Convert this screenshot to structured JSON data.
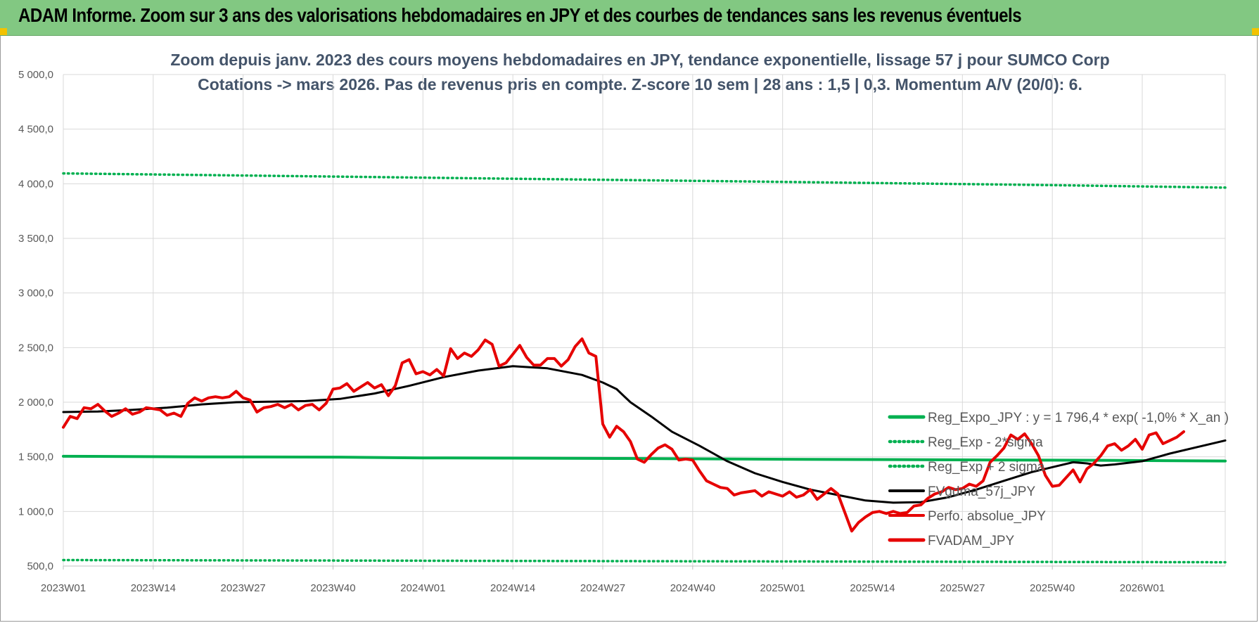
{
  "banner": {
    "title": "ADAM Informe. Zoom sur 3 ans des valorisations hebdomadaires en JPY et des courbes de tendances sans les revenus éventuels"
  },
  "colors": {
    "banner_bg": "#82c882",
    "reg_expo": "#00b050",
    "fvgdma": "#000000",
    "fvadam": "#e60000",
    "title_text": "#44546a"
  },
  "chart_data": {
    "type": "line",
    "title": "Zoom depuis janv. 2023 des cours moyens hebdomadaires en JPY, tendance exponentielle, lissage 57 j pour SUMCO Corp",
    "subtitle": "Cotations -> mars 2026. Pas de revenus pris en compte. Z-score 10 sem | 28 ans : 1,5 | 0,3. Momentum A/V (20/0): 6.",
    "ylim": [
      500,
      5000
    ],
    "yticks": [
      "5 000,0",
      "4 500,0",
      "4 000,0",
      "3 500,0",
      "3 000,0",
      "2 500,0",
      "2 000,0",
      "1 500,0",
      "1 000,0",
      "500,0"
    ],
    "ytick_values": [
      5000,
      4500,
      4000,
      3500,
      3000,
      2500,
      2000,
      1500,
      1000,
      500
    ],
    "xticks": [
      "2023W01",
      "2023W14",
      "2023W27",
      "2023W40",
      "2024W01",
      "2024W14",
      "2024W27",
      "2024W40",
      "2025W01",
      "2025W14",
      "2025W27",
      "2025W40",
      "2026W01"
    ],
    "xtick_positions": [
      0,
      13,
      26,
      39,
      52,
      65,
      78,
      91,
      104,
      117,
      130,
      143,
      156
    ],
    "x_max_week": 168,
    "grid": true,
    "legend_position": "bottom-right",
    "series": [
      {
        "name": "Reg_Expo_JPY : y = 1 796,4 * exp( -1,0% *  X_an )",
        "style": "solid-thick",
        "color": "#00b050",
        "points": [
          [
            0,
            1505
          ],
          [
            20,
            1500
          ],
          [
            40,
            1497
          ],
          [
            52,
            1490
          ],
          [
            80,
            1485
          ],
          [
            104,
            1478
          ],
          [
            130,
            1472
          ],
          [
            150,
            1468
          ],
          [
            168,
            1462
          ]
        ]
      },
      {
        "name": "Reg_Exp - 2*sigma",
        "style": "dotted",
        "color": "#00b050",
        "points": [
          [
            0,
            555
          ],
          [
            40,
            550
          ],
          [
            80,
            545
          ],
          [
            120,
            540
          ],
          [
            168,
            535
          ]
        ]
      },
      {
        "name": "Reg_Exp + 2 sigma",
        "style": "dotted",
        "color": "#00b050",
        "points": [
          [
            0,
            4095
          ],
          [
            20,
            4080
          ],
          [
            40,
            4065
          ],
          [
            60,
            4050
          ],
          [
            80,
            4035
          ],
          [
            100,
            4020
          ],
          [
            120,
            4005
          ],
          [
            140,
            3990
          ],
          [
            168,
            3965
          ]
        ]
      },
      {
        "name": "FVgdma_57j_JPY",
        "style": "solid",
        "color": "#000000",
        "points": [
          [
            0,
            1910
          ],
          [
            5,
            1915
          ],
          [
            10,
            1930
          ],
          [
            15,
            1950
          ],
          [
            20,
            1980
          ],
          [
            25,
            2000
          ],
          [
            30,
            2005
          ],
          [
            35,
            2010
          ],
          [
            40,
            2030
          ],
          [
            45,
            2080
          ],
          [
            50,
            2150
          ],
          [
            55,
            2230
          ],
          [
            60,
            2290
          ],
          [
            65,
            2330
          ],
          [
            70,
            2310
          ],
          [
            75,
            2250
          ],
          [
            78,
            2180
          ],
          [
            80,
            2120
          ],
          [
            82,
            2000
          ],
          [
            85,
            1870
          ],
          [
            88,
            1730
          ],
          [
            92,
            1600
          ],
          [
            96,
            1460
          ],
          [
            100,
            1350
          ],
          [
            104,
            1270
          ],
          [
            108,
            1200
          ],
          [
            112,
            1150
          ],
          [
            116,
            1100
          ],
          [
            120,
            1080
          ],
          [
            124,
            1085
          ],
          [
            128,
            1130
          ],
          [
            132,
            1200
          ],
          [
            136,
            1280
          ],
          [
            140,
            1360
          ],
          [
            144,
            1420
          ],
          [
            146,
            1450
          ],
          [
            148,
            1440
          ],
          [
            150,
            1420
          ],
          [
            152,
            1430
          ],
          [
            156,
            1460
          ],
          [
            160,
            1530
          ],
          [
            164,
            1590
          ],
          [
            168,
            1650
          ]
        ]
      },
      {
        "name": "Perfo. absolue_JPY",
        "style": "solid",
        "color": "#e60000",
        "points": []
      },
      {
        "name": "FVADAM_JPY",
        "style": "solid-thick",
        "color": "#e60000",
        "points": [
          [
            0,
            1770
          ],
          [
            1,
            1870
          ],
          [
            2,
            1850
          ],
          [
            3,
            1950
          ],
          [
            4,
            1940
          ],
          [
            5,
            1980
          ],
          [
            6,
            1920
          ],
          [
            7,
            1870
          ],
          [
            8,
            1900
          ],
          [
            9,
            1940
          ],
          [
            10,
            1890
          ],
          [
            11,
            1910
          ],
          [
            12,
            1950
          ],
          [
            13,
            1940
          ],
          [
            14,
            1930
          ],
          [
            15,
            1880
          ],
          [
            16,
            1900
          ],
          [
            17,
            1870
          ],
          [
            18,
            1990
          ],
          [
            19,
            2040
          ],
          [
            20,
            2010
          ],
          [
            21,
            2040
          ],
          [
            22,
            2050
          ],
          [
            23,
            2040
          ],
          [
            24,
            2050
          ],
          [
            25,
            2100
          ],
          [
            26,
            2040
          ],
          [
            27,
            2020
          ],
          [
            28,
            1910
          ],
          [
            29,
            1950
          ],
          [
            30,
            1960
          ],
          [
            31,
            1980
          ],
          [
            32,
            1950
          ],
          [
            33,
            1980
          ],
          [
            34,
            1930
          ],
          [
            35,
            1970
          ],
          [
            36,
            1980
          ],
          [
            37,
            1930
          ],
          [
            38,
            1990
          ],
          [
            39,
            2120
          ],
          [
            40,
            2130
          ],
          [
            41,
            2170
          ],
          [
            42,
            2100
          ],
          [
            43,
            2140
          ],
          [
            44,
            2180
          ],
          [
            45,
            2130
          ],
          [
            46,
            2160
          ],
          [
            47,
            2060
          ],
          [
            48,
            2150
          ],
          [
            49,
            2360
          ],
          [
            50,
            2390
          ],
          [
            51,
            2260
          ],
          [
            52,
            2280
          ],
          [
            53,
            2250
          ],
          [
            54,
            2300
          ],
          [
            55,
            2240
          ],
          [
            56,
            2490
          ],
          [
            57,
            2400
          ],
          [
            58,
            2450
          ],
          [
            59,
            2420
          ],
          [
            60,
            2480
          ],
          [
            61,
            2570
          ],
          [
            62,
            2530
          ],
          [
            63,
            2330
          ],
          [
            64,
            2360
          ],
          [
            65,
            2440
          ],
          [
            66,
            2520
          ],
          [
            67,
            2410
          ],
          [
            68,
            2340
          ],
          [
            69,
            2340
          ],
          [
            70,
            2400
          ],
          [
            71,
            2400
          ],
          [
            72,
            2330
          ],
          [
            73,
            2390
          ],
          [
            74,
            2510
          ],
          [
            75,
            2580
          ],
          [
            76,
            2450
          ],
          [
            77,
            2420
          ],
          [
            78,
            1800
          ],
          [
            79,
            1680
          ],
          [
            80,
            1780
          ],
          [
            81,
            1730
          ],
          [
            82,
            1640
          ],
          [
            83,
            1480
          ],
          [
            84,
            1450
          ],
          [
            85,
            1520
          ],
          [
            86,
            1580
          ],
          [
            87,
            1610
          ],
          [
            88,
            1570
          ],
          [
            89,
            1470
          ],
          [
            90,
            1480
          ],
          [
            91,
            1470
          ],
          [
            92,
            1370
          ],
          [
            93,
            1280
          ],
          [
            94,
            1250
          ],
          [
            95,
            1220
          ],
          [
            96,
            1210
          ],
          [
            97,
            1150
          ],
          [
            98,
            1170
          ],
          [
            99,
            1180
          ],
          [
            100,
            1190
          ],
          [
            101,
            1140
          ],
          [
            102,
            1180
          ],
          [
            103,
            1160
          ],
          [
            104,
            1140
          ],
          [
            105,
            1180
          ],
          [
            106,
            1130
          ],
          [
            107,
            1150
          ],
          [
            108,
            1200
          ],
          [
            109,
            1110
          ],
          [
            110,
            1160
          ],
          [
            111,
            1210
          ],
          [
            112,
            1160
          ],
          [
            113,
            990
          ],
          [
            114,
            820
          ],
          [
            115,
            900
          ],
          [
            116,
            950
          ],
          [
            117,
            990
          ],
          [
            118,
            1000
          ],
          [
            119,
            980
          ],
          [
            120,
            1000
          ],
          [
            121,
            980
          ],
          [
            122,
            990
          ],
          [
            123,
            1050
          ],
          [
            124,
            1060
          ],
          [
            125,
            1120
          ],
          [
            126,
            1160
          ],
          [
            127,
            1180
          ],
          [
            128,
            1220
          ],
          [
            129,
            1200
          ],
          [
            130,
            1210
          ],
          [
            131,
            1250
          ],
          [
            132,
            1230
          ],
          [
            133,
            1280
          ],
          [
            134,
            1450
          ],
          [
            135,
            1510
          ],
          [
            136,
            1580
          ],
          [
            137,
            1700
          ],
          [
            138,
            1660
          ],
          [
            139,
            1710
          ],
          [
            140,
            1620
          ],
          [
            141,
            1510
          ],
          [
            142,
            1330
          ],
          [
            143,
            1230
          ],
          [
            144,
            1240
          ],
          [
            145,
            1310
          ],
          [
            146,
            1380
          ],
          [
            147,
            1270
          ],
          [
            148,
            1390
          ],
          [
            149,
            1440
          ],
          [
            150,
            1510
          ],
          [
            151,
            1600
          ],
          [
            152,
            1620
          ],
          [
            153,
            1560
          ],
          [
            154,
            1600
          ],
          [
            155,
            1660
          ],
          [
            156,
            1570
          ],
          [
            157,
            1700
          ],
          [
            158,
            1720
          ],
          [
            159,
            1620
          ],
          [
            160,
            1650
          ],
          [
            161,
            1680
          ],
          [
            162,
            1730
          ]
        ]
      }
    ]
  }
}
